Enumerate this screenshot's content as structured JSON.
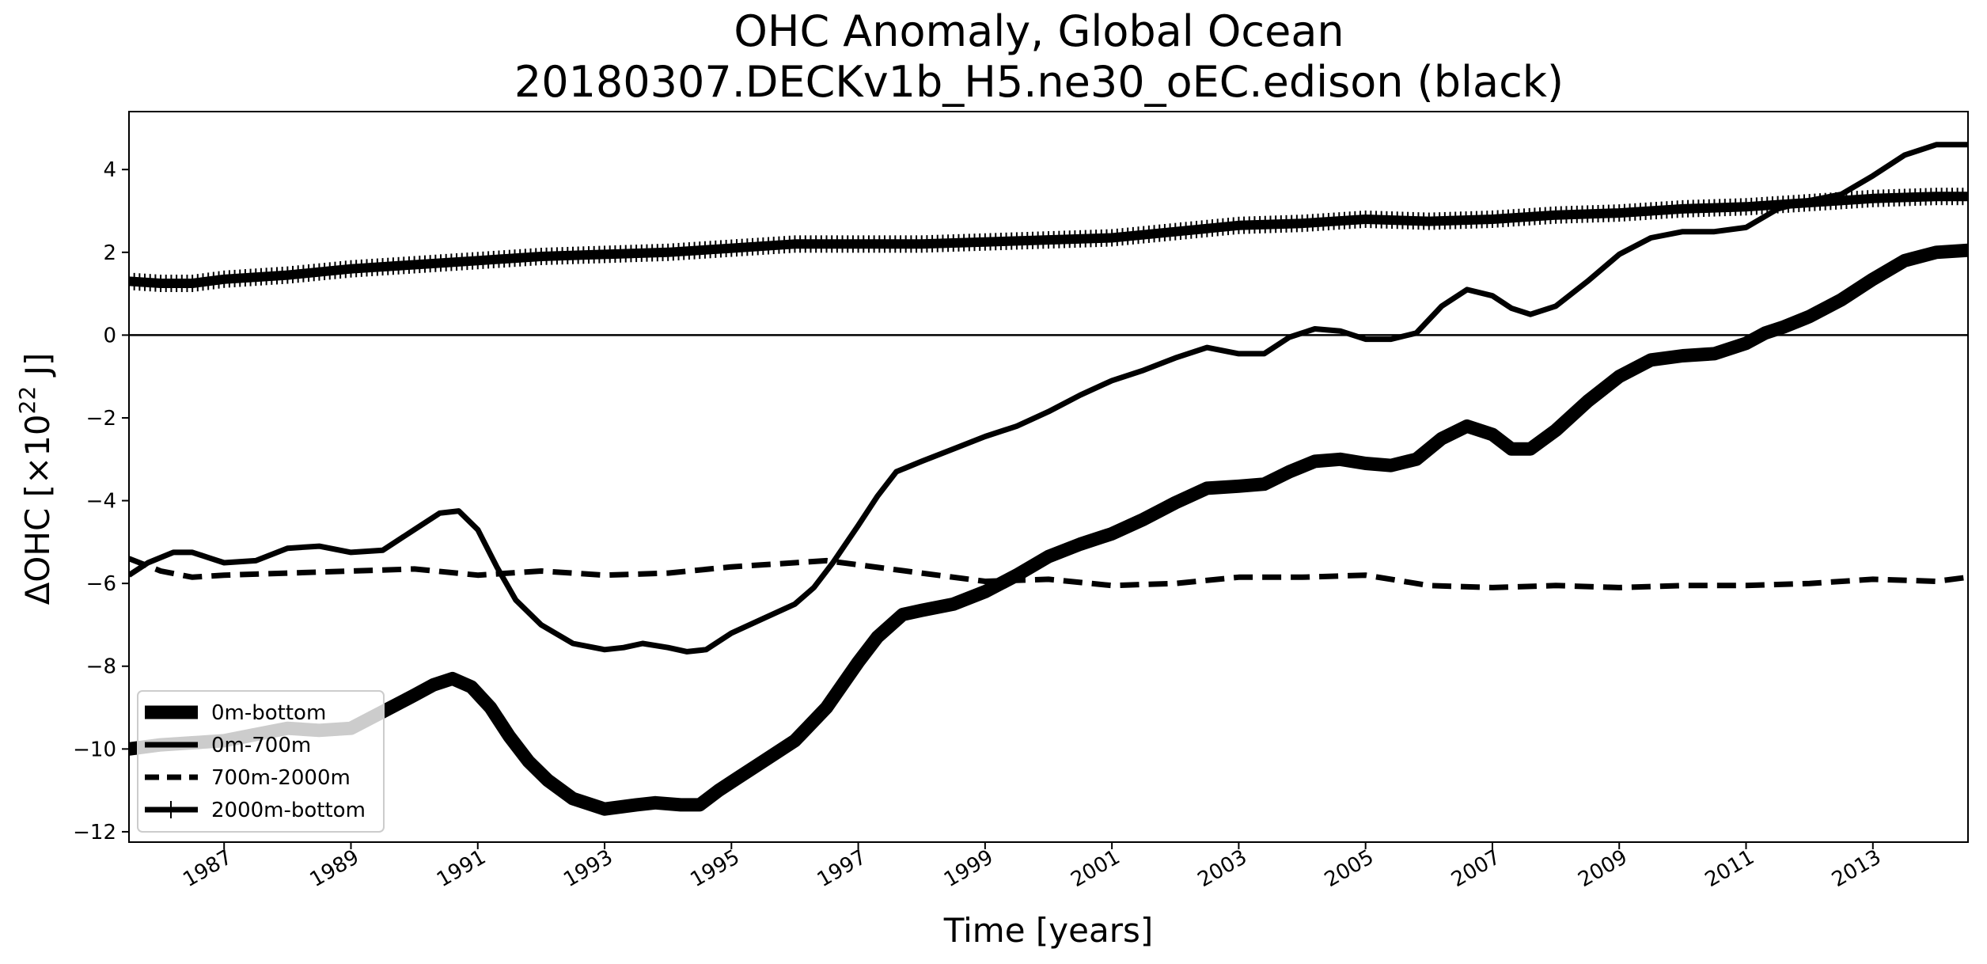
{
  "chart_data": {
    "type": "line",
    "title": "OHC Anomaly, Global Ocean",
    "subtitle": "20180307.DECKv1b_H5.ne30_oEC.edison (black)",
    "xlabel": "Time [years]",
    "ylabel": "ΔOHC [×10²² J]",
    "ylabel_parts": {
      "main": "ΔOHC [×10",
      "sup": "22",
      "end": " J]"
    },
    "xlim": [
      1985.5,
      2014.5
    ],
    "ylim": [
      -12.25,
      5.4
    ],
    "xticks": [
      1987,
      1989,
      1991,
      1993,
      1995,
      1997,
      1999,
      2001,
      2003,
      2005,
      2007,
      2009,
      2011,
      2013
    ],
    "xtick_labels": [
      "1987",
      "1989",
      "1991",
      "1993",
      "1995",
      "1997",
      "1999",
      "2001",
      "2003",
      "2005",
      "2007",
      "2009",
      "2011",
      "2013"
    ],
    "yticks": [
      -12,
      -10,
      -8,
      -6,
      -4,
      -2,
      0,
      2,
      4
    ],
    "ytick_labels": [
      "−12",
      "−10",
      "−8",
      "−6",
      "−4",
      "−2",
      "0",
      "2",
      "4"
    ],
    "zero_line": 0,
    "legend_position": "lower-left",
    "legend": [
      "0m-bottom",
      "0m-700m",
      "700m-2000m",
      "2000m-bottom"
    ],
    "series": [
      {
        "name": "0m-bottom",
        "style": "thick-solid",
        "x": [
          1985.5,
          1986,
          1986.5,
          1987,
          1987.5,
          1988,
          1988.5,
          1989,
          1989.5,
          1990,
          1990.3,
          1990.6,
          1990.9,
          1991.2,
          1991.5,
          1991.8,
          1992.1,
          1992.5,
          1993,
          1993.5,
          1993.8,
          1994.2,
          1994.5,
          1994.8,
          1995.1,
          1995.5,
          1996,
          1996.5,
          1997,
          1997.3,
          1997.7,
          1998,
          1998.5,
          1999,
          1999.5,
          2000,
          2000.5,
          2001,
          2001.5,
          2002,
          2002.5,
          2003,
          2003.4,
          2003.8,
          2004.2,
          2004.6,
          2005,
          2005.4,
          2005.8,
          2006.2,
          2006.6,
          2007,
          2007.3,
          2007.6,
          2008,
          2008.5,
          2009,
          2009.5,
          2010,
          2010.5,
          2011,
          2011.3,
          2011.6,
          2012,
          2012.5,
          2013,
          2013.5,
          2014,
          2014.5
        ],
        "values": [
          -10.0,
          -9.9,
          -9.85,
          -9.8,
          -9.65,
          -9.5,
          -9.55,
          -9.5,
          -9.1,
          -8.7,
          -8.45,
          -8.3,
          -8.5,
          -9.0,
          -9.7,
          -10.3,
          -10.75,
          -11.2,
          -11.45,
          -11.35,
          -11.3,
          -11.35,
          -11.35,
          -11.0,
          -10.7,
          -10.3,
          -9.8,
          -9.0,
          -7.9,
          -7.3,
          -6.75,
          -6.65,
          -6.5,
          -6.2,
          -5.8,
          -5.35,
          -5.05,
          -4.8,
          -4.45,
          -4.05,
          -3.7,
          -3.65,
          -3.6,
          -3.3,
          -3.05,
          -3.0,
          -3.1,
          -3.15,
          -3.0,
          -2.5,
          -2.2,
          -2.4,
          -2.75,
          -2.75,
          -2.3,
          -1.6,
          -1.0,
          -0.6,
          -0.5,
          -0.45,
          -0.2,
          0.05,
          0.2,
          0.45,
          0.85,
          1.35,
          1.8,
          2.0,
          2.05
        ]
      },
      {
        "name": "0m-700m",
        "style": "solid",
        "x": [
          1985.5,
          1985.8,
          1986.2,
          1986.5,
          1986.8,
          1987,
          1987.5,
          1988,
          1988.5,
          1989,
          1989.5,
          1990,
          1990.4,
          1990.7,
          1991,
          1991.3,
          1991.6,
          1992,
          1992.5,
          1993,
          1993.3,
          1993.6,
          1994,
          1994.3,
          1994.6,
          1995,
          1995.5,
          1996,
          1996.3,
          1996.6,
          1997,
          1997.3,
          1997.6,
          1998,
          1998.5,
          1999,
          1999.5,
          2000,
          2000.5,
          2001,
          2001.5,
          2002,
          2002.5,
          2003,
          2003.4,
          2003.8,
          2004.2,
          2004.6,
          2005,
          2005.4,
          2005.8,
          2006.2,
          2006.6,
          2007,
          2007.3,
          2007.6,
          2008,
          2008.5,
          2009,
          2009.5,
          2010,
          2010.5,
          2011,
          2011.5,
          2012,
          2012.5,
          2013,
          2013.5,
          2014,
          2014.5
        ],
        "values": [
          -5.8,
          -5.5,
          -5.25,
          -5.25,
          -5.4,
          -5.5,
          -5.45,
          -5.15,
          -5.1,
          -5.25,
          -5.2,
          -4.7,
          -4.3,
          -4.25,
          -4.7,
          -5.6,
          -6.4,
          -7.0,
          -7.45,
          -7.6,
          -7.55,
          -7.45,
          -7.55,
          -7.65,
          -7.6,
          -7.2,
          -6.85,
          -6.5,
          -6.1,
          -5.5,
          -4.6,
          -3.9,
          -3.3,
          -3.05,
          -2.75,
          -2.45,
          -2.2,
          -1.85,
          -1.45,
          -1.1,
          -0.85,
          -0.55,
          -0.3,
          -0.45,
          -0.45,
          -0.05,
          0.15,
          0.1,
          -0.1,
          -0.1,
          0.05,
          0.7,
          1.1,
          0.95,
          0.65,
          0.5,
          0.7,
          1.3,
          1.95,
          2.35,
          2.5,
          2.5,
          2.6,
          3.05,
          3.25,
          3.4,
          3.85,
          4.35,
          4.6,
          4.6
        ]
      },
      {
        "name": "700m-2000m",
        "style": "dashed",
        "x": [
          1985.5,
          1986,
          1986.5,
          1987,
          1988,
          1989,
          1990,
          1991,
          1992,
          1993,
          1994,
          1995,
          1996,
          1996.5,
          1997,
          1998,
          1999,
          2000,
          2001,
          2002,
          2003,
          2004,
          2005,
          2006,
          2007,
          2008,
          2009,
          2010,
          2011,
          2012,
          2013,
          2014,
          2014.5
        ],
        "values": [
          -5.4,
          -5.7,
          -5.85,
          -5.8,
          -5.75,
          -5.7,
          -5.65,
          -5.8,
          -5.7,
          -5.8,
          -5.75,
          -5.6,
          -5.5,
          -5.45,
          -5.55,
          -5.75,
          -5.95,
          -5.9,
          -6.05,
          -6.0,
          -5.85,
          -5.85,
          -5.8,
          -6.05,
          -6.1,
          -6.05,
          -6.1,
          -6.05,
          -6.05,
          -6.0,
          -5.9,
          -5.95,
          -5.85
        ]
      },
      {
        "name": "2000m-bottom",
        "style": "solid-plus-markers",
        "x": [
          1985.5,
          1986,
          1986.5,
          1987,
          1988,
          1989,
          1990,
          1991,
          1992,
          1993,
          1994,
          1995,
          1996,
          1997,
          1998,
          1999,
          2000,
          2001,
          2002,
          2003,
          2004,
          2005,
          2006,
          2007,
          2008,
          2009,
          2010,
          2011,
          2012,
          2013,
          2014,
          2014.5
        ],
        "values": [
          1.3,
          1.25,
          1.25,
          1.35,
          1.45,
          1.6,
          1.7,
          1.8,
          1.9,
          1.95,
          2.0,
          2.1,
          2.2,
          2.2,
          2.2,
          2.25,
          2.3,
          2.35,
          2.5,
          2.65,
          2.7,
          2.8,
          2.75,
          2.8,
          2.9,
          2.95,
          3.05,
          3.1,
          3.2,
          3.3,
          3.35,
          3.35
        ]
      }
    ]
  }
}
